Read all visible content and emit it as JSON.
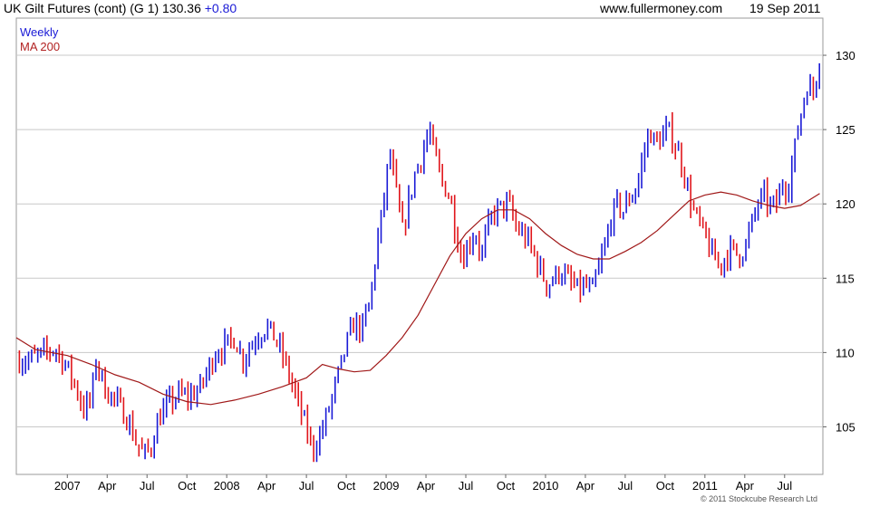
{
  "header": {
    "title": "UK Gilt Futures (cont) (G 1) 130.36",
    "change": "+0.80",
    "site": "www.fullermoney.com",
    "date": "19 Sep 2011"
  },
  "legend": {
    "series1": "Weekly",
    "series2": "MA 200"
  },
  "copyright": "© 2011 Stockcube Research Ltd",
  "colors": {
    "up": "#1a1ad6",
    "down": "#e0151b",
    "ma": "#a01818",
    "grid": "#c8c8c8"
  },
  "chart_data": {
    "type": "candlestick",
    "title": "UK Gilt Futures (cont) (G 1) 130.36 +0.80",
    "xlabel": "",
    "ylabel": "",
    "ylim": [
      101.8,
      132.5
    ],
    "x_ticks": [
      {
        "label": "2007",
        "pos": 2007.0
      },
      {
        "label": "Apr",
        "pos": 2007.25
      },
      {
        "label": "Jul",
        "pos": 2007.5
      },
      {
        "label": "Oct",
        "pos": 2007.75
      },
      {
        "label": "2008",
        "pos": 2008.0
      },
      {
        "label": "Apr",
        "pos": 2008.25
      },
      {
        "label": "Jul",
        "pos": 2008.5
      },
      {
        "label": "Oct",
        "pos": 2008.75
      },
      {
        "label": "2009",
        "pos": 2009.0
      },
      {
        "label": "Apr",
        "pos": 2009.25
      },
      {
        "label": "Jul",
        "pos": 2009.5
      },
      {
        "label": "Oct",
        "pos": 2009.75
      },
      {
        "label": "2010",
        "pos": 2010.0
      },
      {
        "label": "Apr",
        "pos": 2010.25
      },
      {
        "label": "Jul",
        "pos": 2010.5
      },
      {
        "label": "Oct",
        "pos": 2010.75
      },
      {
        "label": "2011",
        "pos": 2011.0
      },
      {
        "label": "Apr",
        "pos": 2011.25
      },
      {
        "label": "Jul",
        "pos": 2011.5
      }
    ],
    "y_ticks": [
      105,
      110,
      115,
      120,
      125,
      130
    ],
    "price_path": [
      [
        2006.75,
        109.5
      ],
      [
        2006.83,
        109.8
      ],
      [
        2006.92,
        110.3
      ],
      [
        2007.0,
        109.0
      ],
      [
        2007.06,
        107.5
      ],
      [
        2007.1,
        106.2
      ],
      [
        2007.15,
        106.8
      ],
      [
        2007.18,
        109.5
      ],
      [
        2007.24,
        107.5
      ],
      [
        2007.3,
        106.8
      ],
      [
        2007.38,
        105.5
      ],
      [
        2007.43,
        104.0
      ],
      [
        2007.48,
        103.1
      ],
      [
        2007.52,
        103.5
      ],
      [
        2007.57,
        105.5
      ],
      [
        2007.63,
        106.5
      ],
      [
        2007.7,
        107.2
      ],
      [
        2007.75,
        107.0
      ],
      [
        2007.83,
        107.5
      ],
      [
        2007.88,
        108.8
      ],
      [
        2007.93,
        110.0
      ],
      [
        2008.0,
        110.5
      ],
      [
        2008.05,
        111.0
      ],
      [
        2008.1,
        109.5
      ],
      [
        2008.15,
        110.5
      ],
      [
        2008.2,
        111.2
      ],
      [
        2008.25,
        111.8
      ],
      [
        2008.3,
        111.0
      ],
      [
        2008.35,
        109.8
      ],
      [
        2008.4,
        108.2
      ],
      [
        2008.45,
        106.5
      ],
      [
        2008.5,
        104.8
      ],
      [
        2008.54,
        103.5
      ],
      [
        2008.59,
        104.5
      ],
      [
        2008.65,
        106.5
      ],
      [
        2008.7,
        108.5
      ],
      [
        2008.75,
        110.5
      ],
      [
        2008.8,
        112.0
      ],
      [
        2008.85,
        111.5
      ],
      [
        2008.9,
        113.5
      ],
      [
        2008.94,
        117.0
      ],
      [
        2008.99,
        120.5
      ],
      [
        2009.02,
        123.5
      ],
      [
        2009.06,
        121.0
      ],
      [
        2009.1,
        118.0
      ],
      [
        2009.14,
        120.0
      ],
      [
        2009.18,
        122.0
      ],
      [
        2009.23,
        123.5
      ],
      [
        2009.27,
        125.0
      ],
      [
        2009.31,
        123.0
      ],
      [
        2009.35,
        121.5
      ],
      [
        2009.4,
        120.5
      ],
      [
        2009.44,
        118.0
      ],
      [
        2009.48,
        116.2
      ],
      [
        2009.52,
        117.5
      ],
      [
        2009.56,
        118.0
      ],
      [
        2009.6,
        116.5
      ],
      [
        2009.64,
        118.5
      ],
      [
        2009.68,
        119.5
      ],
      [
        2009.73,
        119.8
      ],
      [
        2009.77,
        120.0
      ],
      [
        2009.81,
        118.5
      ],
      [
        2009.85,
        118.0
      ],
      [
        2009.89,
        117.5
      ],
      [
        2009.93,
        116.5
      ],
      [
        2009.97,
        115.5
      ],
      [
        2010.01,
        114.5
      ],
      [
        2010.05,
        115.0
      ],
      [
        2010.09,
        115.5
      ],
      [
        2010.13,
        115.0
      ],
      [
        2010.17,
        114.5
      ],
      [
        2010.21,
        114.2
      ],
      [
        2010.25,
        114.5
      ],
      [
        2010.29,
        114.0
      ],
      [
        2010.33,
        115.5
      ],
      [
        2010.37,
        117.0
      ],
      [
        2010.41,
        119.0
      ],
      [
        2010.45,
        120.0
      ],
      [
        2010.49,
        119.5
      ],
      [
        2010.53,
        120.5
      ],
      [
        2010.57,
        121.0
      ],
      [
        2010.61,
        123.0
      ],
      [
        2010.65,
        125.0
      ],
      [
        2010.69,
        124.0
      ],
      [
        2010.73,
        124.5
      ],
      [
        2010.77,
        125.0
      ],
      [
        2010.81,
        124.0
      ],
      [
        2010.85,
        123.0
      ],
      [
        2010.89,
        121.0
      ],
      [
        2010.93,
        119.5
      ],
      [
        2010.97,
        118.5
      ],
      [
        2011.01,
        117.5
      ],
      [
        2011.05,
        116.5
      ],
      [
        2011.09,
        115.8
      ],
      [
        2011.13,
        116.5
      ],
      [
        2011.17,
        117.0
      ],
      [
        2011.21,
        116.5
      ],
      [
        2011.25,
        117.0
      ],
      [
        2011.29,
        118.5
      ],
      [
        2011.33,
        120.0
      ],
      [
        2011.37,
        120.5
      ],
      [
        2011.41,
        119.8
      ],
      [
        2011.45,
        120.0
      ],
      [
        2011.49,
        121.5
      ],
      [
        2011.52,
        121.0
      ],
      [
        2011.56,
        123.5
      ],
      [
        2011.6,
        126.0
      ],
      [
        2011.64,
        128.0
      ],
      [
        2011.68,
        127.5
      ],
      [
        2011.72,
        130.0
      ]
    ],
    "ma_path": [
      [
        2006.68,
        111.0
      ],
      [
        2006.8,
        110.2
      ],
      [
        2007.0,
        109.8
      ],
      [
        2007.15,
        109.2
      ],
      [
        2007.3,
        108.5
      ],
      [
        2007.45,
        108.0
      ],
      [
        2007.6,
        107.2
      ],
      [
        2007.75,
        106.7
      ],
      [
        2007.9,
        106.5
      ],
      [
        2008.05,
        106.8
      ],
      [
        2008.2,
        107.2
      ],
      [
        2008.35,
        107.7
      ],
      [
        2008.5,
        108.3
      ],
      [
        2008.6,
        109.2
      ],
      [
        2008.7,
        108.9
      ],
      [
        2008.8,
        108.7
      ],
      [
        2008.9,
        108.8
      ],
      [
        2009.0,
        109.8
      ],
      [
        2009.1,
        111.0
      ],
      [
        2009.2,
        112.5
      ],
      [
        2009.3,
        114.5
      ],
      [
        2009.4,
        116.5
      ],
      [
        2009.5,
        118.0
      ],
      [
        2009.6,
        119.0
      ],
      [
        2009.7,
        119.6
      ],
      [
        2009.8,
        119.6
      ],
      [
        2009.9,
        119.0
      ],
      [
        2010.0,
        118.0
      ],
      [
        2010.1,
        117.2
      ],
      [
        2010.2,
        116.6
      ],
      [
        2010.3,
        116.3
      ],
      [
        2010.4,
        116.3
      ],
      [
        2010.5,
        116.8
      ],
      [
        2010.6,
        117.4
      ],
      [
        2010.7,
        118.2
      ],
      [
        2010.8,
        119.2
      ],
      [
        2010.9,
        120.2
      ],
      [
        2011.0,
        120.6
      ],
      [
        2011.1,
        120.8
      ],
      [
        2011.2,
        120.6
      ],
      [
        2011.3,
        120.2
      ],
      [
        2011.4,
        119.9
      ],
      [
        2011.5,
        119.7
      ],
      [
        2011.6,
        119.9
      ],
      [
        2011.72,
        120.7
      ]
    ],
    "x_range": [
      2006.68,
      2011.74
    ],
    "series": [
      {
        "name": "Weekly",
        "kind": "ohlc"
      },
      {
        "name": "MA 200",
        "kind": "line"
      }
    ]
  }
}
